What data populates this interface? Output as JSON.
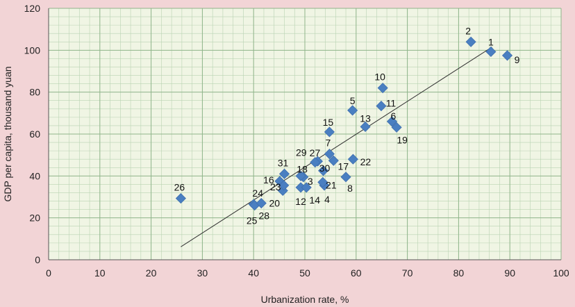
{
  "chart_data": {
    "type": "scatter",
    "xlabel": "Urbanization rate, %",
    "ylabel": "GDP per capita, thousand yuan",
    "xlim": [
      0,
      100
    ],
    "ylim": [
      0,
      120
    ],
    "x_ticks": [
      0,
      10,
      20,
      30,
      40,
      50,
      60,
      70,
      80,
      90,
      100
    ],
    "y_ticks": [
      0,
      20,
      40,
      60,
      80,
      100,
      120
    ],
    "grid": true,
    "minor_grid": true,
    "marker_color": "#4a7fc1",
    "background_color": "#f0f5e4",
    "grid_color": "#b9d3b2",
    "trendline": {
      "x": [
        25.8,
        86.5
      ],
      "y": [
        6.2,
        101.5
      ]
    },
    "points": [
      {
        "label": "1",
        "x": 86.3,
        "y": 99.3
      },
      {
        "label": "2",
        "x": 82.4,
        "y": 104
      },
      {
        "label": "3",
        "x": 49.7,
        "y": 39.5
      },
      {
        "label": "4",
        "x": 53.8,
        "y": 35.5
      },
      {
        "label": "5",
        "x": 59.3,
        "y": 71.3
      },
      {
        "label": "6",
        "x": 67.0,
        "y": 66.0
      },
      {
        "label": "7",
        "x": 54.8,
        "y": 50.5
      },
      {
        "label": "8",
        "x": 58.0,
        "y": 39.5
      },
      {
        "label": "9",
        "x": 89.5,
        "y": 97.5
      },
      {
        "label": "10",
        "x": 65.2,
        "y": 82.0
      },
      {
        "label": "11",
        "x": 64.9,
        "y": 73.4
      },
      {
        "label": "12",
        "x": 49.2,
        "y": 34.5
      },
      {
        "label": "13",
        "x": 61.8,
        "y": 63.5
      },
      {
        "label": "14",
        "x": 50.3,
        "y": 34.5
      },
      {
        "label": "15",
        "x": 54.8,
        "y": 61.0
      },
      {
        "label": "16",
        "x": 45.1,
        "y": 37.5
      },
      {
        "label": "17",
        "x": 55.6,
        "y": 47.3
      },
      {
        "label": "18",
        "x": 49.2,
        "y": 40.0
      },
      {
        "label": "19",
        "x": 67.9,
        "y": 63.2
      },
      {
        "label": "20",
        "x": 45.7,
        "y": 33.0
      },
      {
        "label": "21",
        "x": 53.5,
        "y": 37.0
      },
      {
        "label": "22",
        "x": 59.4,
        "y": 48.0
      },
      {
        "label": "23",
        "x": 45.9,
        "y": 35.5
      },
      {
        "label": "24",
        "x": 40.0,
        "y": 26.5
      },
      {
        "label": "25",
        "x": 40.2,
        "y": 26.0
      },
      {
        "label": "26",
        "x": 25.8,
        "y": 29.3
      },
      {
        "label": "27",
        "x": 52.5,
        "y": 47.0
      },
      {
        "label": "28",
        "x": 41.5,
        "y": 27.0
      },
      {
        "label": "29",
        "x": 52.0,
        "y": 46.5
      },
      {
        "label": "30",
        "x": 53.6,
        "y": 42.5
      },
      {
        "label": "31",
        "x": 46.0,
        "y": 41.0
      }
    ]
  }
}
